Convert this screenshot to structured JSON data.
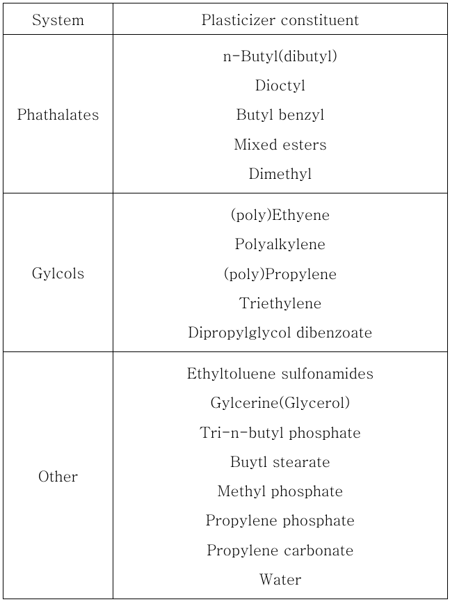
{
  "font_family": "Batang, Times New Roman, serif",
  "font_size_pt": 16,
  "text_color": "#000000",
  "border_color": "#000000",
  "background_color": "#ffffff",
  "columns": {
    "system": "System",
    "constituent": "Plasticizer constituent"
  },
  "rows": [
    {
      "system": "Phathalates",
      "constituents": [
        "n-Butyl(dibutyl)",
        "Dioctyl",
        "Butyl benzyl",
        "Mixed esters",
        "Dimethyl"
      ]
    },
    {
      "system": "Gylcols",
      "constituents": [
        "(poly)Ethyene",
        "Polyalkylene",
        "(poly)Propylene",
        "Triethylene",
        "Dipropylglycol dibenzoate"
      ]
    },
    {
      "system": "Other",
      "constituents": [
        "Ethyltoluene sulfonamides",
        "Gylcerine(Glycerol)",
        "Tri-n-butyl phosphate",
        "Buytl stearate",
        "Methyl phosphate",
        "Propylene phosphate",
        "Propylene carbonate",
        "Water"
      ]
    }
  ]
}
